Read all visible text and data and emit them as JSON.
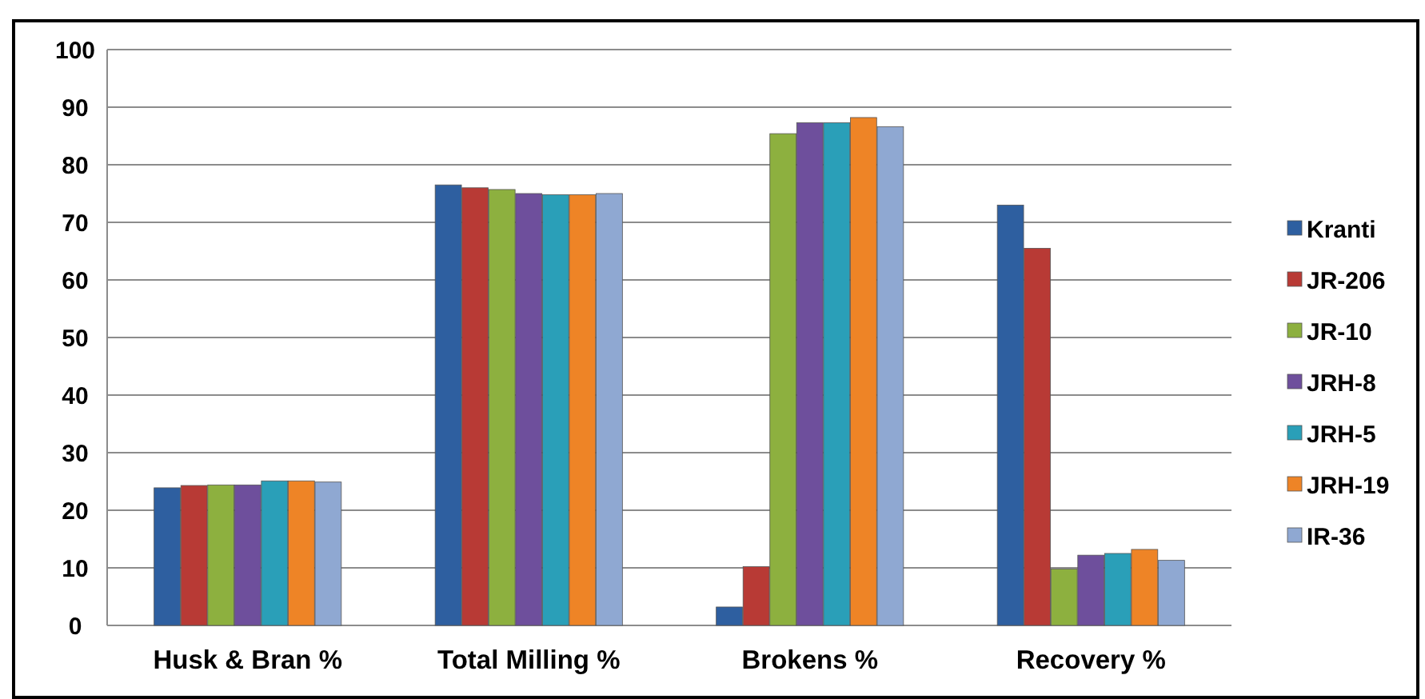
{
  "chart_data": {
    "type": "bar",
    "categories": [
      "Husk & Bran %",
      "Total Milling %",
      "Brokens %",
      "Recovery %"
    ],
    "series": [
      {
        "name": "Kranti",
        "color": "#2e5fa0",
        "values": [
          23.9,
          76.5,
          3.2,
          73.0
        ]
      },
      {
        "name": "JR-206",
        "color": "#b83a35",
        "values": [
          24.3,
          76.0,
          10.2,
          65.5
        ]
      },
      {
        "name": "JR-10",
        "color": "#8db03f",
        "values": [
          24.4,
          75.7,
          85.4,
          9.8
        ]
      },
      {
        "name": "JRH-8",
        "color": "#6e4f9c",
        "values": [
          24.4,
          75.0,
          87.3,
          12.2
        ]
      },
      {
        "name": "JRH-5",
        "color": "#2a9fb8",
        "values": [
          25.1,
          74.8,
          87.3,
          12.5
        ]
      },
      {
        "name": "JRH-19",
        "color": "#ee8426",
        "values": [
          25.1,
          74.8,
          88.2,
          13.2
        ]
      },
      {
        "name": "IR-36",
        "color": "#8fa8d2",
        "values": [
          24.9,
          75.0,
          86.6,
          11.3
        ]
      }
    ],
    "ylim": [
      0,
      100
    ],
    "yticks": [
      0,
      10,
      20,
      30,
      40,
      50,
      60,
      70,
      80,
      90,
      100
    ],
    "grid": true,
    "legend": "right"
  }
}
